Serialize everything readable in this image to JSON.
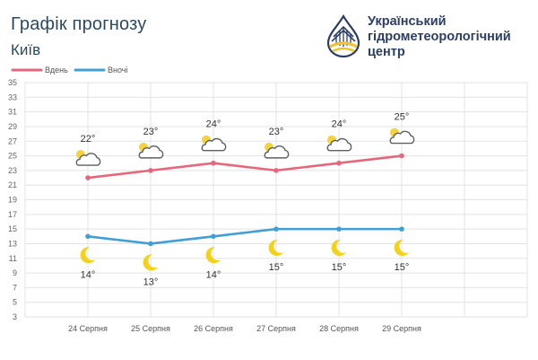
{
  "header": {
    "title": "Графік прогнозу",
    "city": "Київ"
  },
  "organization": {
    "name_lines": [
      "Український",
      "гідрометеорологічний",
      "центр"
    ]
  },
  "colors": {
    "day": "#e8667d",
    "night": "#3fa0d8",
    "grid": "#e3e3e3",
    "sun": "#f5d33b",
    "moon": "#f2d21c",
    "cloud": "#5a6066"
  },
  "chart_data": {
    "type": "line",
    "categories": [
      "24 Серпня",
      "25 Серпня",
      "26 Серпня",
      "27 Серпня",
      "28 Серпня",
      "29 Серпня"
    ],
    "series": [
      {
        "name": "Вдень",
        "values": [
          22,
          23,
          24,
          23,
          24,
          25
        ],
        "labels": [
          "22°",
          "23°",
          "24°",
          "23°",
          "24°",
          "25°"
        ],
        "icon": "partly-cloudy-icon"
      },
      {
        "name": "Вночі",
        "values": [
          14,
          13,
          14,
          15,
          15,
          15
        ],
        "labels": [
          "14°",
          "13°",
          "14°",
          "15°",
          "15°",
          "15°"
        ],
        "icon": "moon-icon"
      }
    ],
    "ylim": [
      3,
      35
    ],
    "yticks": [
      3,
      5,
      7,
      9,
      11,
      13,
      15,
      17,
      19,
      21,
      23,
      25,
      27,
      29,
      31,
      33,
      35
    ],
    "grid": true,
    "legend": "top-left"
  }
}
